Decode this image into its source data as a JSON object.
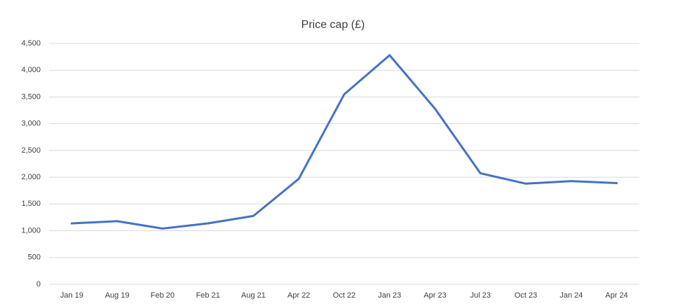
{
  "chart_data": {
    "type": "line",
    "title": "Price cap (£)",
    "categories": [
      "Jan 19",
      "Aug 19",
      "Feb 20",
      "Feb 21",
      "Aug 21",
      "Apr 22",
      "Oct 22",
      "Jan 23",
      "Apr 23",
      "Jul 23",
      "Oct 23",
      "Jan 24",
      "Apr 24"
    ],
    "series": [
      {
        "name": "Price cap (£)",
        "color": "#4472c4",
        "values": [
          1138,
          1179,
          1042,
          1138,
          1277,
          1971,
          3549,
          4279,
          3280,
          2074,
          1880,
          1928,
          1890
        ]
      }
    ],
    "ylim": [
      0,
      4500
    ],
    "yticks": [
      0,
      500,
      {
        "value": 1000,
        "label": "1,000"
      },
      {
        "value": 1500,
        "label": "1,500"
      },
      {
        "value": 2000,
        "label": "2,000"
      },
      {
        "value": 2500,
        "label": "2,500"
      },
      {
        "value": 3000,
        "label": "3,000"
      },
      {
        "value": 3500,
        "label": "3,500"
      },
      {
        "value": 4000,
        "label": "4,000"
      },
      {
        "value": 4500,
        "label": "4,500"
      }
    ],
    "grid": true
  }
}
